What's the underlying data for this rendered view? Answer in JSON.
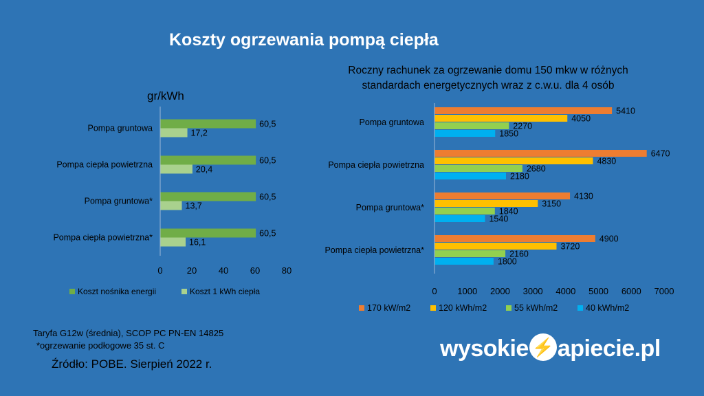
{
  "title": "Koszty ogrzewania pompą ciepła",
  "footnotes": {
    "tariff": "Taryfa G12w (średnia), SCOP PC PN-EN 14825",
    "floor": "*ogrzewanie podłogowe 35 st. C",
    "source": "Źródło: POBE. Sierpień 2022 r."
  },
  "logo": {
    "left": "wysokie",
    "right": "apiecie.pl",
    "icon": "lightning-bolt-icon"
  },
  "colors": {
    "background": "#2E74B5",
    "energy_carrier": "#70AD47",
    "heat_cost": "#A9D18E",
    "s170": "#ED7D31",
    "s120": "#FFC000",
    "s55": "#92D050",
    "s40": "#00B0F0"
  },
  "chart_data": [
    {
      "type": "bar",
      "orientation": "horizontal",
      "title": "",
      "ylabel": "gr/kWh",
      "categories": [
        "Pompa gruntowa",
        "Pompa ciepła powietrzna",
        "Pompa gruntowa*",
        "Pompa ciepła powietrzna*"
      ],
      "series": [
        {
          "name": "Koszt nośnika energii",
          "color": "#70AD47",
          "values": [
            60.5,
            60.5,
            60.5,
            60.5
          ],
          "labels": [
            "60,5",
            "60,5",
            "60,5",
            "60,5"
          ]
        },
        {
          "name": "Koszt 1 kWh ciepła",
          "color": "#A9D18E",
          "values": [
            17.2,
            20.4,
            13.7,
            16.1
          ],
          "labels": [
            "17,2",
            "20,4",
            "13,7",
            "16,1"
          ]
        }
      ],
      "xlim": [
        0,
        80
      ],
      "xticks": [
        0,
        20,
        40,
        60,
        80
      ],
      "grid": false,
      "legend": "bottom"
    },
    {
      "type": "bar",
      "orientation": "horizontal",
      "title": "Roczny rachunek za ogrzewanie domu 150 mkw w różnych standardach energetycznych wraz z c.w.u. dla 4 osób",
      "title_lines": [
        "Roczny rachunek za ogrzewanie domu 150 mkw w różnych",
        "standardach energetycznych wraz z c.w.u. dla 4 osób"
      ],
      "categories": [
        "Pompa gruntowa",
        "Pompa ciepła powietrzna",
        "Pompa gruntowa*",
        "Pompa ciepła powietrzna*"
      ],
      "series": [
        {
          "name": "170 kW/m2",
          "color": "#ED7D31",
          "values": [
            5410,
            6470,
            4130,
            4900
          ]
        },
        {
          "name": "120 kWh/m2",
          "color": "#FFC000",
          "values": [
            4050,
            4830,
            3150,
            3720
          ]
        },
        {
          "name": "55 kWh/m2",
          "color": "#92D050",
          "values": [
            2270,
            2680,
            1840,
            2160
          ]
        },
        {
          "name": "40 kWh/m2",
          "color": "#00B0F0",
          "values": [
            1850,
            2180,
            1540,
            1800
          ]
        }
      ],
      "xlim": [
        0,
        7000
      ],
      "xticks": [
        0,
        1000,
        2000,
        3000,
        4000,
        5000,
        6000,
        7000
      ],
      "grid": false,
      "legend": "bottom"
    }
  ]
}
